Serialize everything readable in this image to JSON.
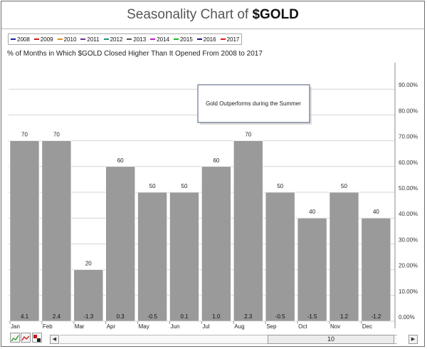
{
  "header": {
    "title_prefix": "Seasonality Chart of ",
    "title_symbol": "$GOLD"
  },
  "legend": [
    {
      "label": "2008",
      "color": "#1a1aa6"
    },
    {
      "label": "2009",
      "color": "#c41a1a"
    },
    {
      "label": "2010",
      "color": "#e08a1e"
    },
    {
      "label": "2011",
      "color": "#6b2d8f"
    },
    {
      "label": "2012",
      "color": "#1e8f7a"
    },
    {
      "label": "2013",
      "color": "#555555"
    },
    {
      "label": "2014",
      "color": "#c21ac2"
    },
    {
      "label": "2015",
      "color": "#1ab81a"
    },
    {
      "label": "2016",
      "color": "#1a1a7a"
    },
    {
      "label": "2017",
      "color": "#e01a1a"
    }
  ],
  "subtitle": "% of Months in Which $GOLD Closed Higher Than It Opened From 2008 to 2017",
  "annotation": "Gold Outperforms during the Summer",
  "chart_data": {
    "type": "bar",
    "categories": [
      "Jan",
      "Feb",
      "Mar",
      "Apr",
      "May",
      "Jun",
      "Jul",
      "Aug",
      "Sep",
      "Oct",
      "Nov",
      "Dec"
    ],
    "values": [
      70,
      70,
      20,
      60,
      50,
      50,
      60,
      70,
      50,
      40,
      50,
      40
    ],
    "value_labels": [
      "70",
      "70",
      "20",
      "60",
      "50",
      "50",
      "60",
      "70",
      "50",
      "40",
      "50",
      "40"
    ],
    "avg_return_labels": [
      "4.1",
      "2.4",
      "-1.3",
      "0.3",
      "-0.5",
      "0.1",
      "1.0",
      "2.3",
      "-0.5",
      "-1.5",
      "1.2",
      "-1.2"
    ],
    "ylim": [
      0,
      100
    ],
    "yticks": [
      0,
      10,
      20,
      30,
      40,
      50,
      60,
      70,
      80,
      90
    ],
    "ytick_labels": [
      "0.00%",
      "10.00%",
      "20.00%",
      "30.00%",
      "40.00%",
      "50.00%",
      "60.00%",
      "70.00%",
      "80.00%",
      "90.00%"
    ],
    "bar_color": "#9a9a9a",
    "grid": true,
    "axis_side": "right"
  },
  "scrollbar": {
    "value": "10",
    "left_arrow": "◀",
    "right_arrow": "▶"
  }
}
